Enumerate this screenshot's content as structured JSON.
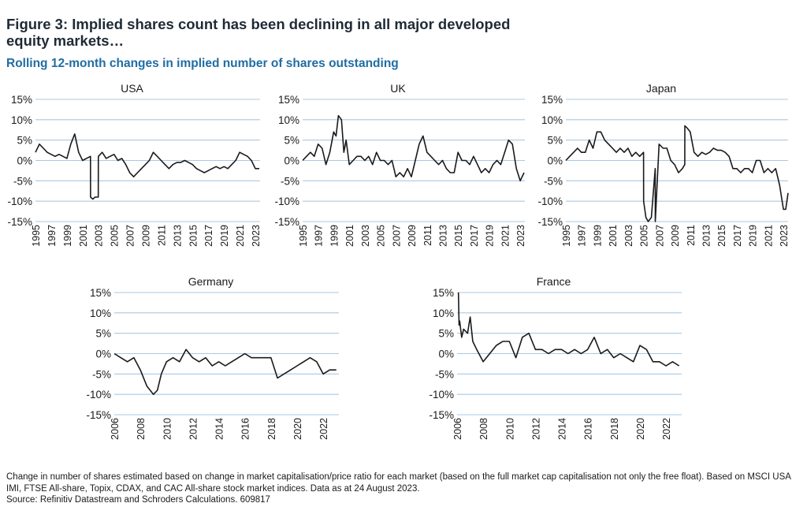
{
  "header": {
    "title": "Figure 3: Implied shares count has been declining in all major developed equity markets…",
    "subtitle": "Rolling 12-month changes in implied number of shares outstanding"
  },
  "footnote": {
    "line1": "Change in number of shares estimated based on change in market capitalisation/price ratio for each market (based on the full market cap capitalisation not only the free float). Based on MSCI USA IMI, FTSE All-share, Topix, CDAX, and CAC All-share stock market indices. Data as at 24 August 2023.",
    "line2": "Source: Refinitiv Datastream and Schroders Calculations. 609817"
  },
  "colors": {
    "line": "#1a1a1a",
    "grid": "#a9c8e3",
    "title": "#1f2a36",
    "subtitle": "#1f6da3"
  },
  "chart_data": [
    {
      "type": "line",
      "title": "USA",
      "ylim": [
        -15,
        15
      ],
      "yticks": [
        "15%",
        "10%",
        "5%",
        "0%",
        "-5%",
        "-10%",
        "-15%"
      ],
      "xlim": [
        1995,
        2023.6
      ],
      "xticks": [
        "1995",
        "1997",
        "1999",
        "2001",
        "2003",
        "2005",
        "2007",
        "2009",
        "2011",
        "2013",
        "2015",
        "2017",
        "2019",
        "2021",
        "2023"
      ],
      "grid": true,
      "x": [
        1995,
        1995.5,
        1996,
        1996.5,
        1997,
        1997.5,
        1998,
        1998.5,
        1999,
        1999.5,
        2000,
        2000.5,
        2001,
        2001.5,
        2002,
        2002.01,
        2002.3,
        2002.6,
        2003,
        2003.01,
        2003.5,
        2004,
        2004.5,
        2005,
        2005.5,
        2006,
        2006.5,
        2007,
        2007.5,
        2008,
        2008.5,
        2009,
        2009.5,
        2010,
        2010.5,
        2011,
        2011.5,
        2012,
        2012.5,
        2013,
        2013.5,
        2014,
        2014.5,
        2015,
        2015.5,
        2016,
        2016.5,
        2017,
        2017.5,
        2018,
        2018.5,
        2019,
        2019.5,
        2020,
        2020.5,
        2021,
        2021.5,
        2022,
        2022.5,
        2023,
        2023.5
      ],
      "y": [
        2,
        4,
        3,
        2,
        1.5,
        1,
        1.5,
        1,
        0.5,
        4,
        6.5,
        2,
        0,
        0.5,
        1,
        -9,
        -9.5,
        -9,
        -9,
        1,
        2,
        0.5,
        1,
        1.5,
        0,
        0.5,
        -1,
        -3,
        -4,
        -3,
        -2,
        -1,
        0,
        2,
        1,
        0,
        -1,
        -2,
        -1,
        -0.5,
        -0.5,
        0,
        -0.5,
        -1,
        -2,
        -2.5,
        -3,
        -2.5,
        -2,
        -1.5,
        -2,
        -1.5,
        -2,
        -1,
        0,
        2,
        1.5,
        1,
        0,
        -2,
        -2
      ]
    },
    {
      "type": "line",
      "title": "UK",
      "ylim": [
        -15,
        15
      ],
      "yticks": [
        "15%",
        "10%",
        "5%",
        "0%",
        "-5%",
        "-10%",
        "-15%"
      ],
      "xlim": [
        1995,
        2023.6
      ],
      "xticks": [
        "1995",
        "1997",
        "1999",
        "2001",
        "2003",
        "2005",
        "2007",
        "2009",
        "2011",
        "2013",
        "2015",
        "2017",
        "2019",
        "2021",
        "2023"
      ],
      "grid": true,
      "x": [
        1995,
        1995.5,
        1996,
        1996.5,
        1997,
        1997.5,
        1998,
        1998.5,
        1999,
        1999.3,
        1999.6,
        2000,
        2000.3,
        2000.6,
        2001,
        2001.5,
        2002,
        2002.5,
        2003,
        2003.5,
        2004,
        2004.5,
        2005,
        2005.5,
        2006,
        2006.5,
        2007,
        2007.5,
        2008,
        2008.5,
        2009,
        2009.5,
        2010,
        2010.5,
        2011,
        2011.5,
        2012,
        2012.5,
        2013,
        2013.5,
        2014,
        2014.5,
        2015,
        2015.5,
        2016,
        2016.5,
        2017,
        2017.5,
        2018,
        2018.5,
        2019,
        2019.5,
        2020,
        2020.5,
        2021,
        2021.5,
        2022,
        2022.5,
        2023,
        2023.5
      ],
      "y": [
        0,
        1,
        2,
        1,
        4,
        3,
        -1,
        2,
        7,
        6,
        11,
        10,
        2,
        5,
        -1,
        0,
        1,
        1,
        0,
        1,
        -1,
        2,
        0,
        0,
        -1,
        0,
        -4,
        -3,
        -4,
        -2,
        -4,
        0,
        4,
        6,
        2,
        1,
        0,
        -1,
        0,
        -2,
        -3,
        -3,
        2,
        0,
        0,
        -1,
        1,
        -1,
        -3,
        -2,
        -3,
        -1,
        0,
        -1,
        2,
        5,
        4,
        -2,
        -5,
        -3
      ]
    },
    {
      "type": "line",
      "title": "Japan",
      "ylim": [
        -15,
        15
      ],
      "yticks": [
        "15%",
        "10%",
        "5%",
        "0%",
        "-5%",
        "-10%",
        "-15%"
      ],
      "xlim": [
        1995,
        2023.6
      ],
      "xticks": [
        "1995",
        "1997",
        "1999",
        "2001",
        "2003",
        "2005",
        "2007",
        "2009",
        "2011",
        "2013",
        "2015",
        "2017",
        "2019",
        "2021",
        "2023"
      ],
      "grid": true,
      "x": [
        1995,
        1995.5,
        1996,
        1996.5,
        1997,
        1997.5,
        1998,
        1998.5,
        1999,
        1999.5,
        2000,
        2000.5,
        2001,
        2001.5,
        2002,
        2002.5,
        2003,
        2003.5,
        2004,
        2004.5,
        2005,
        2005.01,
        2005.3,
        2005.6,
        2006,
        2006.5,
        2006.51,
        2007,
        2007.5,
        2008,
        2008.5,
        2009,
        2009.5,
        2010,
        2010.3,
        2010.31,
        2010.6,
        2011,
        2011.5,
        2012,
        2012.5,
        2013,
        2013.5,
        2014,
        2014.5,
        2015,
        2015.5,
        2016,
        2016.5,
        2017,
        2017.5,
        2018,
        2018.5,
        2019,
        2019.5,
        2020,
        2020.5,
        2021,
        2021.5,
        2022,
        2022.5,
        2023,
        2023.3,
        2023.6
      ],
      "y": [
        0,
        1,
        2,
        3,
        2,
        2,
        5,
        3,
        7,
        7,
        5,
        4,
        3,
        2,
        3,
        2,
        3,
        1,
        2,
        1,
        2,
        -10,
        -14,
        -15,
        -14,
        -2,
        -15,
        4,
        3,
        3,
        0,
        -1,
        -3,
        -2,
        -1,
        8.5,
        8,
        7,
        2,
        1,
        2,
        1.5,
        2,
        3,
        2.5,
        2.5,
        2,
        1,
        -2,
        -2,
        -3,
        -2,
        -2,
        -3,
        0,
        0,
        -3,
        -2,
        -3,
        -2,
        -6,
        -12,
        -12,
        -8
      ]
    },
    {
      "type": "line",
      "title": "Germany",
      "ylim": [
        -15,
        15
      ],
      "yticks": [
        "15%",
        "10%",
        "5%",
        "0%",
        "-5%",
        "-10%",
        "-15%"
      ],
      "xlim": [
        2006,
        2023.2
      ],
      "xticks": [
        "2006",
        "2008",
        "2010",
        "2012",
        "2014",
        "2016",
        "2018",
        "2020",
        "2022"
      ],
      "grid": true,
      "x": [
        2006,
        2006.5,
        2007,
        2007.5,
        2008,
        2008.5,
        2009,
        2009.3,
        2009.6,
        2010,
        2010.5,
        2011,
        2011.5,
        2012,
        2012.5,
        2013,
        2013.5,
        2014,
        2014.5,
        2015,
        2015.5,
        2016,
        2016.5,
        2017,
        2017.5,
        2018,
        2018.5,
        2019,
        2019.5,
        2020,
        2020.5,
        2021,
        2021.5,
        2022,
        2022.5,
        2023
      ],
      "y": [
        0,
        -1,
        -2,
        -1,
        -4,
        -8,
        -10,
        -9,
        -5,
        -2,
        -1,
        -2,
        1,
        -1,
        -2,
        -1,
        -3,
        -2,
        -3,
        -2,
        -1,
        0,
        -1,
        -1,
        -1,
        -1,
        -6,
        -5,
        -4,
        -3,
        -2,
        -1,
        -2,
        -5,
        -4,
        -4
      ]
    },
    {
      "type": "line",
      "title": "France",
      "ylim": [
        -15,
        15
      ],
      "yticks": [
        "15%",
        "10%",
        "5%",
        "0%",
        "-5%",
        "-10%",
        "-15%"
      ],
      "xlim": [
        2006,
        2023.2
      ],
      "xticks": [
        "2006",
        "2008",
        "2010",
        "2012",
        "2014",
        "2016",
        "2018",
        "2020",
        "2022"
      ],
      "grid": true,
      "x": [
        2006.1,
        2006.15,
        2006.2,
        2006.35,
        2006.5,
        2006.8,
        2007,
        2007.2,
        2007.5,
        2008,
        2008.5,
        2009,
        2009.5,
        2010,
        2010.5,
        2011,
        2011.5,
        2012,
        2012.5,
        2013,
        2013.5,
        2014,
        2014.5,
        2015,
        2015.5,
        2016,
        2016.5,
        2017,
        2017.5,
        2018,
        2018.5,
        2019,
        2019.5,
        2020,
        2020.5,
        2021,
        2021.5,
        2022,
        2022.5,
        2023
      ],
      "y": [
        15,
        7,
        8,
        4,
        6,
        5,
        9,
        3,
        1,
        -2,
        0,
        2,
        3,
        3,
        -1,
        4,
        5,
        1,
        1,
        0,
        1,
        1,
        0,
        1,
        0,
        1,
        4,
        0,
        1,
        -1,
        0,
        -1,
        -2,
        2,
        1,
        -2,
        -2,
        -3,
        -2,
        -3
      ]
    }
  ]
}
